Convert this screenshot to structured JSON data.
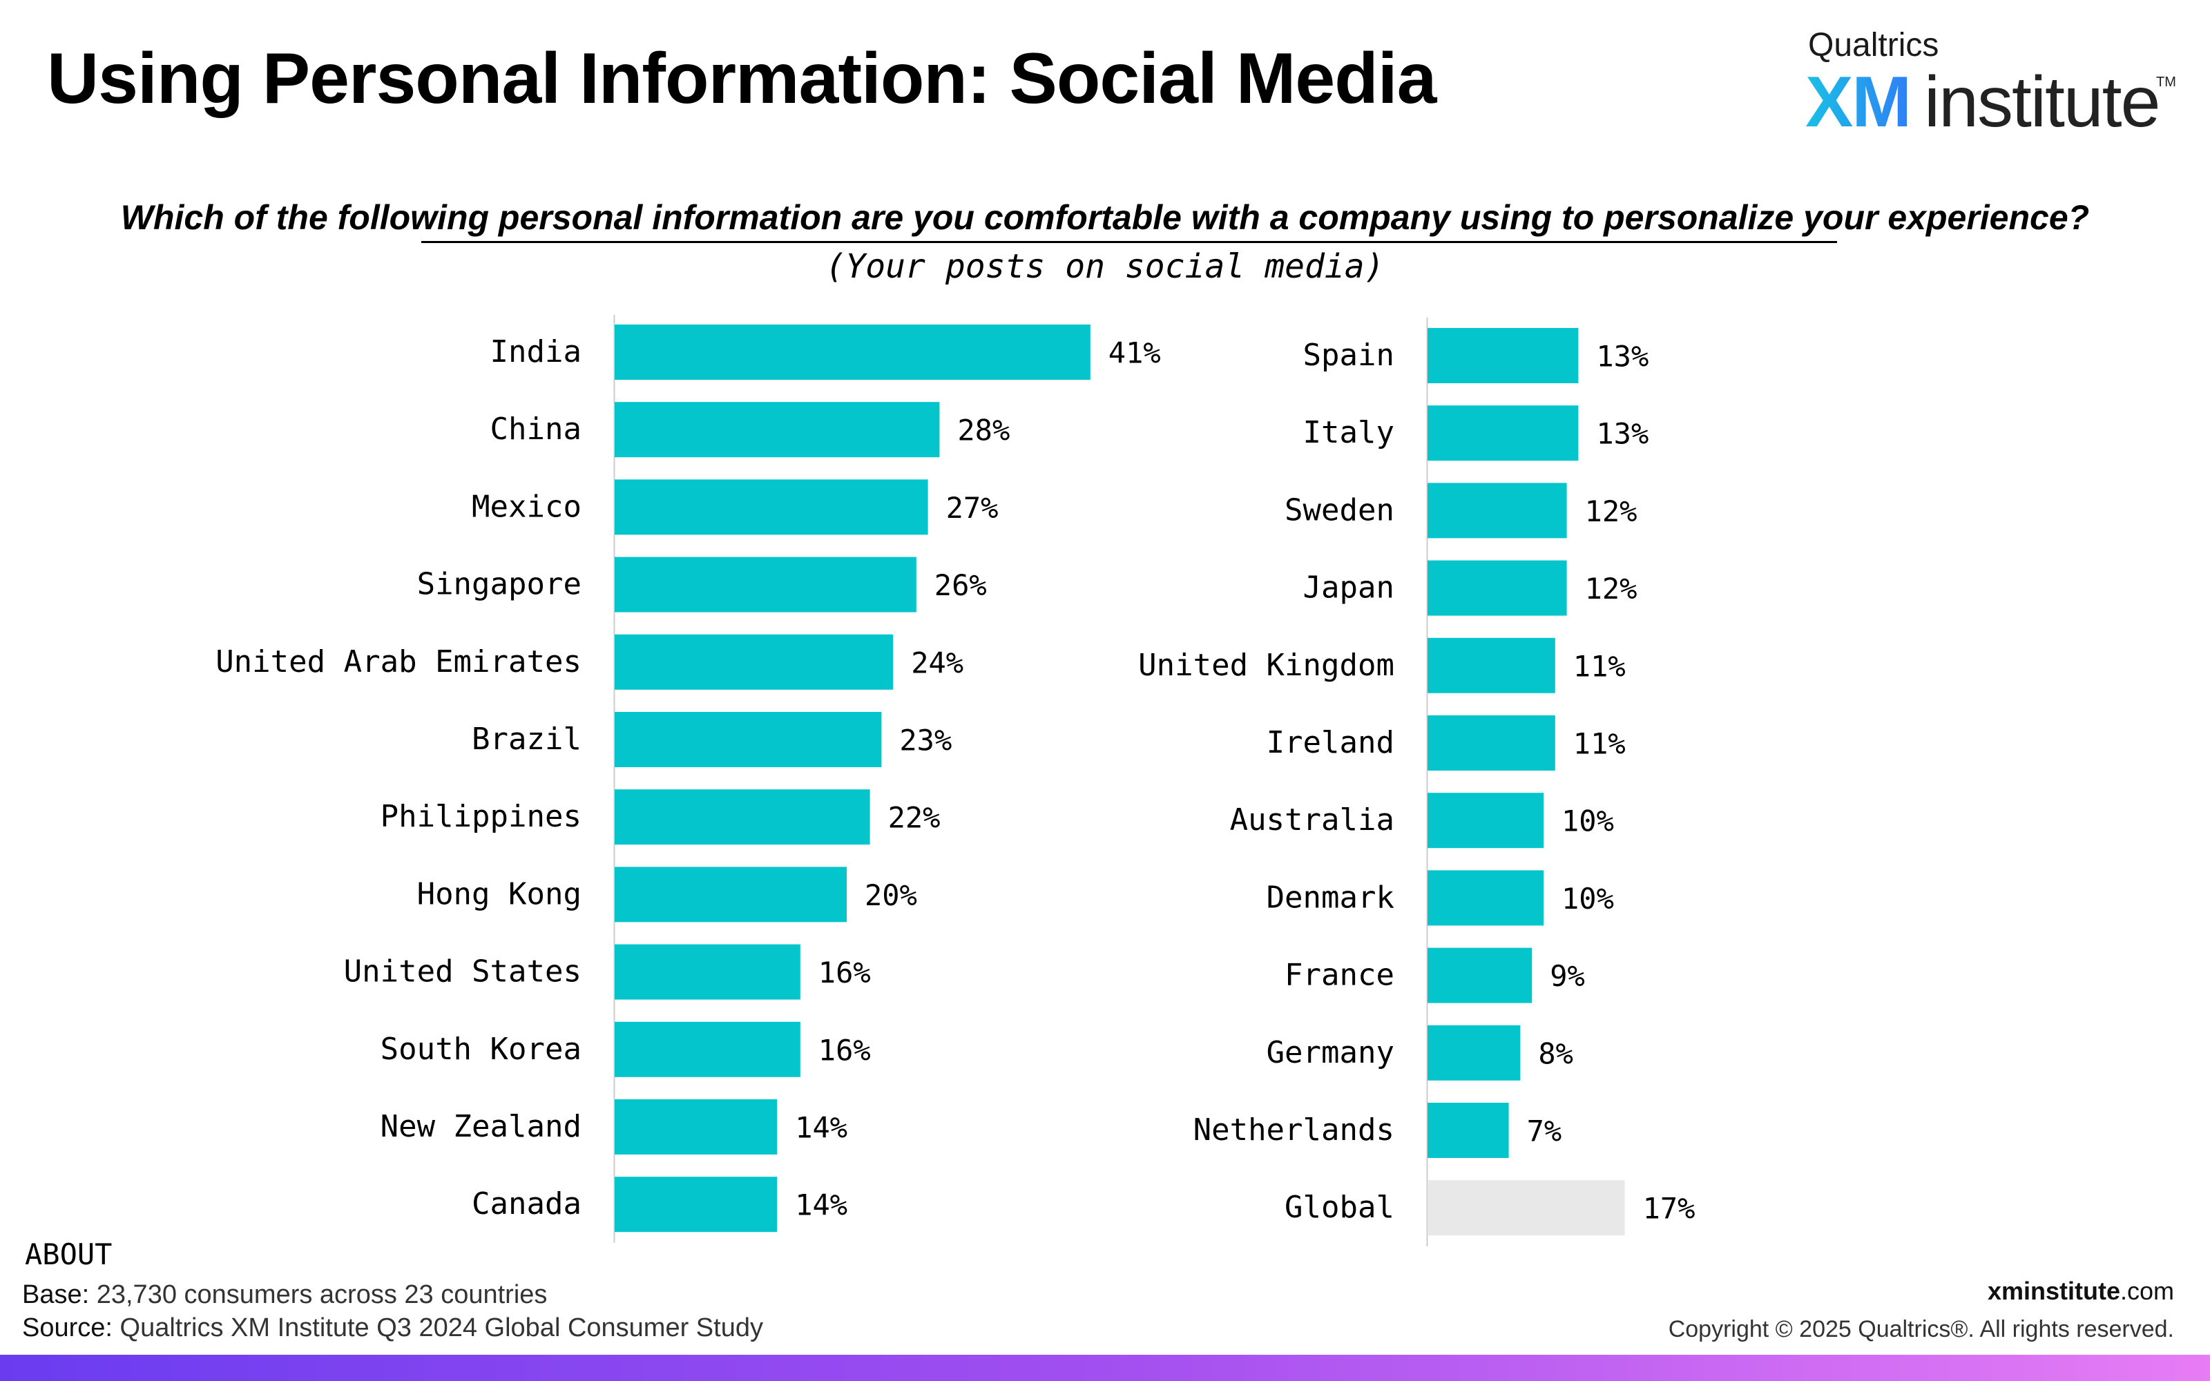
{
  "header": {
    "title": "Using Personal Information: Social Media",
    "logo_top": "Qualtrics",
    "logo_xm": "XM",
    "logo_institute": "institute",
    "logo_tm": "TM"
  },
  "question": "Which of the following personal information are you comfortable with a company using to personalize your experience?",
  "subquestion": "(Your posts on social media)",
  "footer": {
    "about_label": "ABOUT",
    "base_label": "Base:",
    "base_value": "23,730 consumers across 23 countries",
    "source_label": "Source:",
    "source_value": "Qualtrics XM Institute Q3 2024 Global Consumer Study",
    "site_bold": "xminstitute",
    "site_rest": ".com",
    "copyright": "Copyright © 2025 Qualtrics®. All rights reserved."
  },
  "colors": {
    "bar": "#05c5cc",
    "global_bar": "#e8e8e8",
    "axis": "#cccccc"
  },
  "chart_data": [
    {
      "type": "bar",
      "orientation": "horizontal",
      "value_format": "percent",
      "categories": [
        "India",
        "China",
        "Mexico",
        "Singapore",
        "United Arab Emirates",
        "Brazil",
        "Philippines",
        "Hong Kong",
        "United States",
        "South Korea",
        "New Zealand",
        "Canada"
      ],
      "values": [
        41,
        28,
        27,
        26,
        24,
        23,
        22,
        20,
        16,
        16,
        14,
        14
      ],
      "labels": [
        "41%",
        "28%",
        "27%",
        "26%",
        "24%",
        "23%",
        "22%",
        "20%",
        "16%",
        "16%",
        "14%",
        "14%"
      ]
    },
    {
      "type": "bar",
      "orientation": "horizontal",
      "value_format": "percent",
      "categories": [
        "Spain",
        "Italy",
        "Sweden",
        "Japan",
        "United Kingdom",
        "Ireland",
        "Australia",
        "Denmark",
        "France",
        "Germany",
        "Netherlands",
        "Global"
      ],
      "values": [
        13,
        13,
        12,
        12,
        11,
        11,
        10,
        10,
        9,
        8,
        7,
        17
      ],
      "labels": [
        "13%",
        "13%",
        "12%",
        "12%",
        "11%",
        "11%",
        "10%",
        "10%",
        "9%",
        "8%",
        "7%",
        "17%"
      ],
      "highlight": "Global"
    }
  ]
}
